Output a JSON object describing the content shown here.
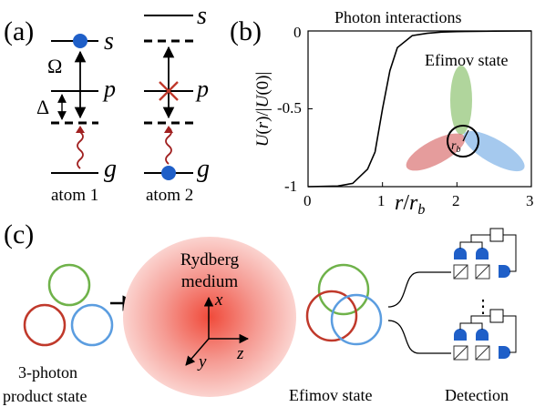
{
  "panels": {
    "a": {
      "label": "(a)",
      "levels": {
        "s": "s",
        "p": "p",
        "g": "g"
      },
      "omega": "Ω",
      "delta": "Δ",
      "atom1": "atom 1",
      "atom2": "atom 2"
    },
    "b": {
      "label": "(b)",
      "title": "Photon interactions",
      "ylabel": "U(r)/|U(0)|",
      "xlabel": "r/r_b",
      "yticks": [
        "0",
        "-0.5",
        "-1"
      ],
      "xticks": [
        "0",
        "1",
        "2",
        "3"
      ],
      "inset_title": "Efimov state",
      "inset_label": "r_b"
    },
    "c": {
      "label": "(c)",
      "medium_line1": "Rydberg",
      "medium_line2": "medium",
      "axis_x": "x",
      "axis_y": "y",
      "axis_z": "z",
      "product_line1": "3-photon",
      "product_line2": "product state",
      "efimov": "Efimov state",
      "detection": "Detection",
      "ellipsis": "⋮"
    }
  },
  "chart_data": {
    "type": "line",
    "title": "Photon interactions",
    "xlabel": "r/r_b",
    "ylabel": "U(r)/|U(0)|",
    "xlim": [
      0,
      3
    ],
    "ylim": [
      -1,
      0
    ],
    "series": [
      {
        "x": [
          0,
          0.4,
          0.6,
          0.8,
          0.9,
          1.0,
          1.1,
          1.2,
          1.4,
          1.6,
          1.8,
          2.0,
          2.5,
          3.0
        ],
        "values": [
          -1,
          -0.996,
          -0.979,
          -0.888,
          -0.777,
          -0.5,
          -0.255,
          -0.107,
          -0.03,
          -0.015,
          -0.007,
          -0.004,
          -0.001,
          0
        ]
      }
    ]
  },
  "colors": {
    "atom": "#1f5fc8",
    "red": "#c0392b",
    "green": "#6fb24a",
    "blue": "#5b9de0",
    "photon": "#a02020"
  }
}
